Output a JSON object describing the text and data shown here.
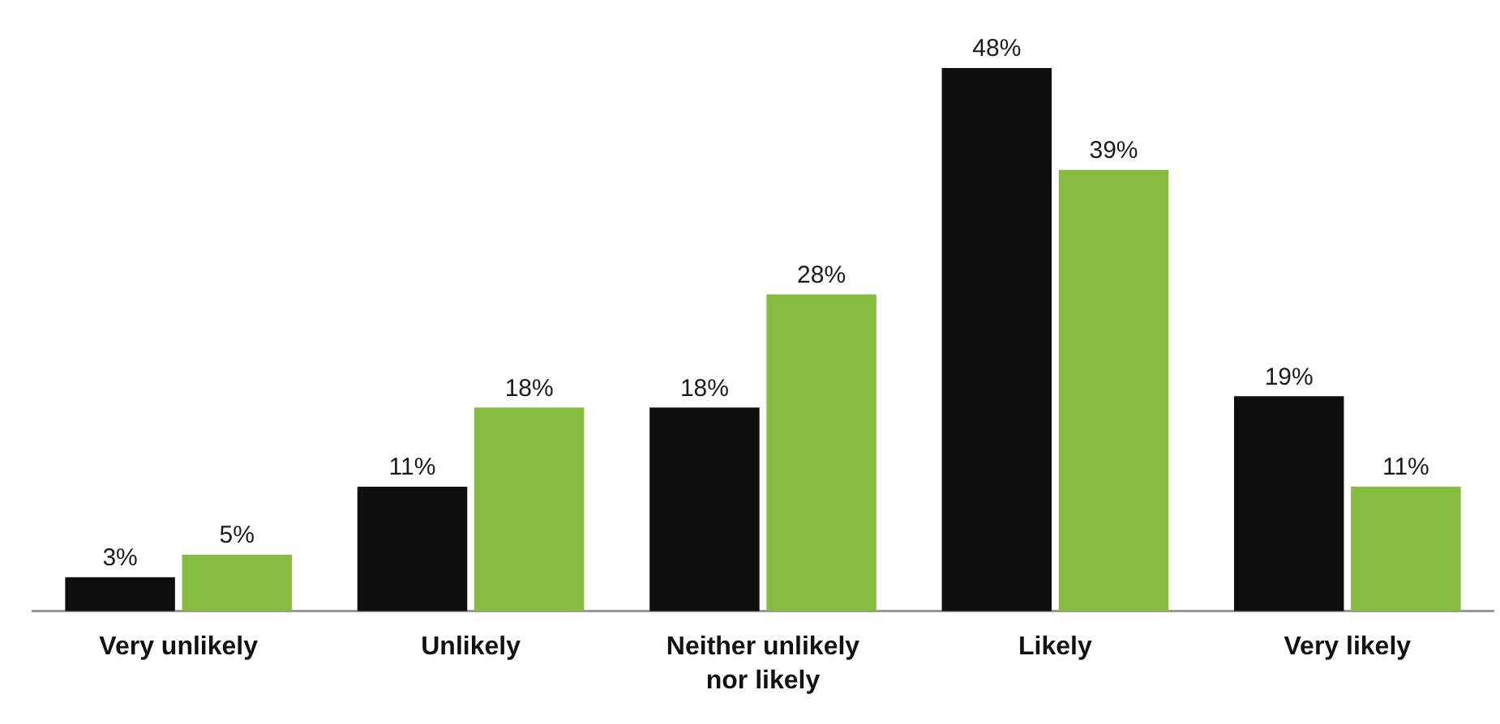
{
  "chart_data": {
    "type": "bar",
    "categories": [
      "Very unlikely",
      "Unlikely",
      "Neither unlikely nor likely",
      "Likely",
      "Very likely"
    ],
    "series": [
      {
        "color": "#0d0f0f",
        "values": [
          3,
          11,
          18,
          48,
          19
        ],
        "value_labels": [
          "3%",
          "11%",
          "18%",
          "48%",
          "19%"
        ]
      },
      {
        "color": "#86bc40",
        "values": [
          5,
          18,
          28,
          39,
          11
        ],
        "value_labels": [
          "5%",
          "18%",
          "28%",
          "39%",
          "11%"
        ]
      }
    ],
    "grid": false,
    "legend": false,
    "tick_labels": "x"
  }
}
